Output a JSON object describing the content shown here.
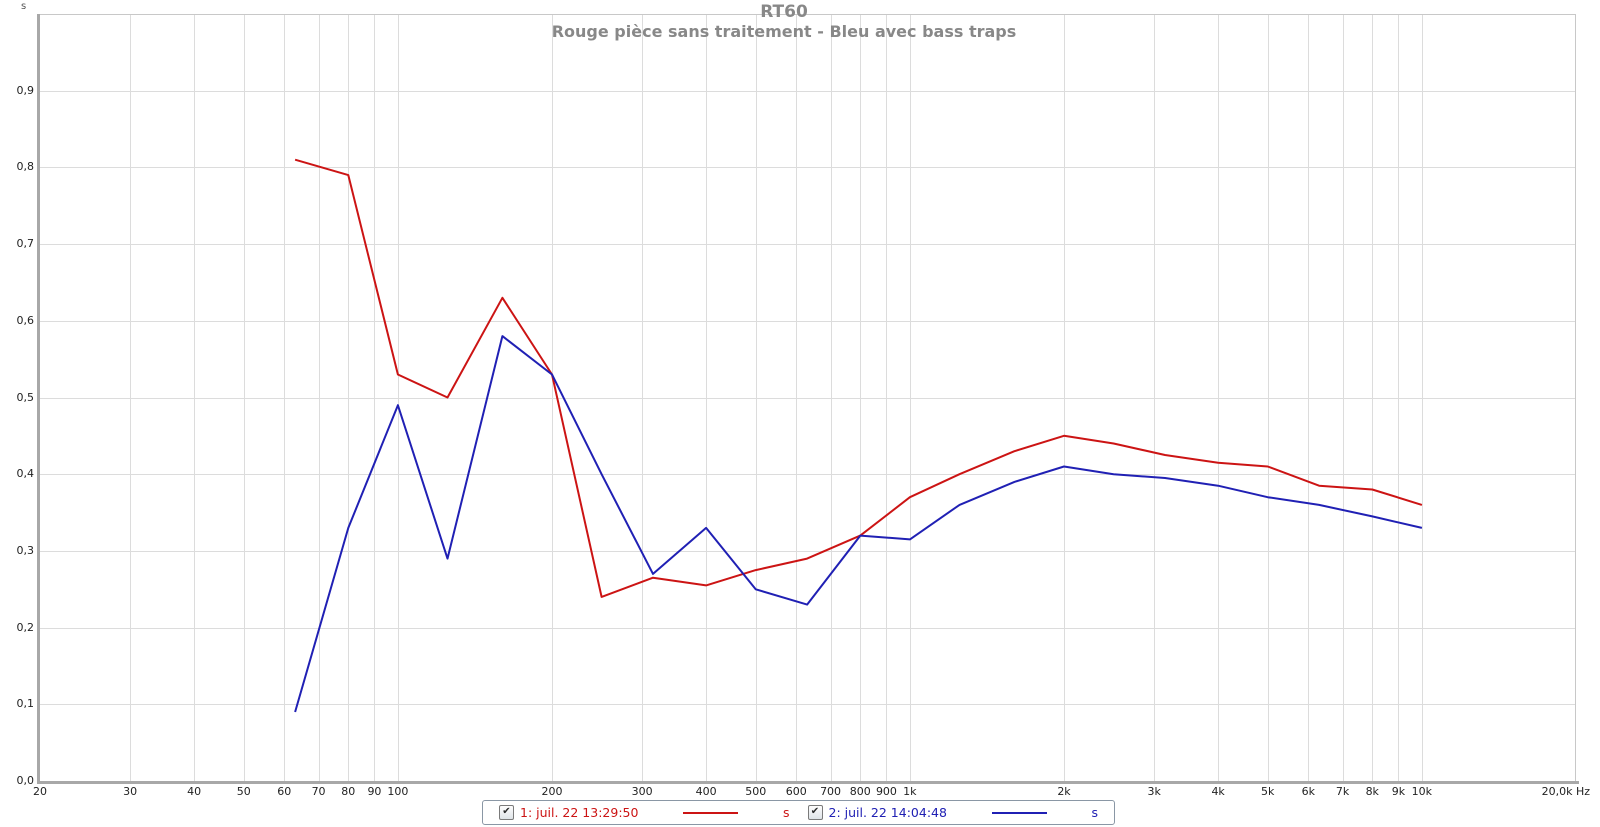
{
  "header": {
    "title": "RT60",
    "subtitle": "Rouge pièce sans traitement - Bleu avec bass traps"
  },
  "axes": {
    "y_unit_label": "s",
    "y_ticks": [
      {
        "value": 0.0,
        "label": "0,0"
      },
      {
        "value": 0.1,
        "label": "0,1"
      },
      {
        "value": 0.2,
        "label": "0,2"
      },
      {
        "value": 0.3,
        "label": "0,3"
      },
      {
        "value": 0.4,
        "label": "0,4"
      },
      {
        "value": 0.5,
        "label": "0,5"
      },
      {
        "value": 0.6,
        "label": "0,6"
      },
      {
        "value": 0.7,
        "label": "0,7"
      },
      {
        "value": 0.8,
        "label": "0,8"
      },
      {
        "value": 0.9,
        "label": "0,9"
      }
    ],
    "x_ticks": [
      {
        "freq": 20,
        "label": "20"
      },
      {
        "freq": 30,
        "label": "30"
      },
      {
        "freq": 40,
        "label": "40"
      },
      {
        "freq": 50,
        "label": "50"
      },
      {
        "freq": 60,
        "label": "60"
      },
      {
        "freq": 70,
        "label": "70"
      },
      {
        "freq": 80,
        "label": "80"
      },
      {
        "freq": 90,
        "label": "90"
      },
      {
        "freq": 100,
        "label": "100"
      },
      {
        "freq": 200,
        "label": "200"
      },
      {
        "freq": 300,
        "label": "300"
      },
      {
        "freq": 400,
        "label": "400"
      },
      {
        "freq": 500,
        "label": "500"
      },
      {
        "freq": 600,
        "label": "600"
      },
      {
        "freq": 700,
        "label": "700"
      },
      {
        "freq": 800,
        "label": "800"
      },
      {
        "freq": 900,
        "label": "900"
      },
      {
        "freq": 1000,
        "label": "1k"
      },
      {
        "freq": 2000,
        "label": "2k"
      },
      {
        "freq": 3000,
        "label": "3k"
      },
      {
        "freq": 4000,
        "label": "4k"
      },
      {
        "freq": 5000,
        "label": "5k"
      },
      {
        "freq": 6000,
        "label": "6k"
      },
      {
        "freq": 7000,
        "label": "7k"
      },
      {
        "freq": 8000,
        "label": "8k"
      },
      {
        "freq": 9000,
        "label": "9k"
      },
      {
        "freq": 10000,
        "label": "10k"
      },
      {
        "freq": 20000,
        "label": "20,0k Hz"
      }
    ]
  },
  "legend": {
    "items": [
      {
        "checked": true,
        "checkmark": "✔",
        "label": "1: juil. 22 13:29:50",
        "unit": "s",
        "color": "#cc1414"
      },
      {
        "checked": true,
        "checkmark": "✔",
        "label": "2: juil. 22 14:04:48",
        "unit": "s",
        "color": "#2020b4"
      }
    ]
  },
  "colors": {
    "red_series": "#cc1414",
    "blue_series": "#2020b4",
    "title_text": "#888888",
    "gridline": "#dcdcdc",
    "axis_band": "#a8a8a8",
    "plot_border": "#c8c8c8",
    "tick_text": "#222222"
  },
  "chart_data": {
    "type": "line",
    "title": "RT60",
    "subtitle": "Rouge pièce sans traitement - Bleu avec bass traps",
    "xlabel": "Hz",
    "ylabel": "s",
    "x_scale": "log",
    "x_range_hz": [
      20,
      20000
    ],
    "ylim": [
      0.0,
      1.0
    ],
    "grid": true,
    "legend_position": "bottom",
    "frequencies_hz": [
      63,
      80,
      100,
      125,
      160,
      200,
      250,
      315,
      400,
      500,
      630,
      800,
      1000,
      1250,
      1600,
      2000,
      2500,
      3150,
      4000,
      5000,
      6300,
      8000,
      10000
    ],
    "series": [
      {
        "name": "1: juil. 22 13:29:50",
        "color": "#cc1414",
        "values": [
          0.81,
          0.79,
          0.53,
          0.5,
          0.63,
          0.53,
          0.24,
          0.265,
          0.255,
          0.275,
          0.29,
          0.32,
          0.37,
          0.4,
          0.43,
          0.45,
          0.44,
          0.425,
          0.415,
          0.41,
          0.385,
          0.38,
          0.36
        ]
      },
      {
        "name": "2: juil. 22 14:04:48",
        "color": "#2020b4",
        "values": [
          0.09,
          0.33,
          0.49,
          0.29,
          0.58,
          0.53,
          0.4,
          0.27,
          0.33,
          0.25,
          0.23,
          0.32,
          0.315,
          0.36,
          0.39,
          0.41,
          0.4,
          0.395,
          0.385,
          0.37,
          0.36,
          0.345,
          0.33
        ]
      }
    ]
  }
}
